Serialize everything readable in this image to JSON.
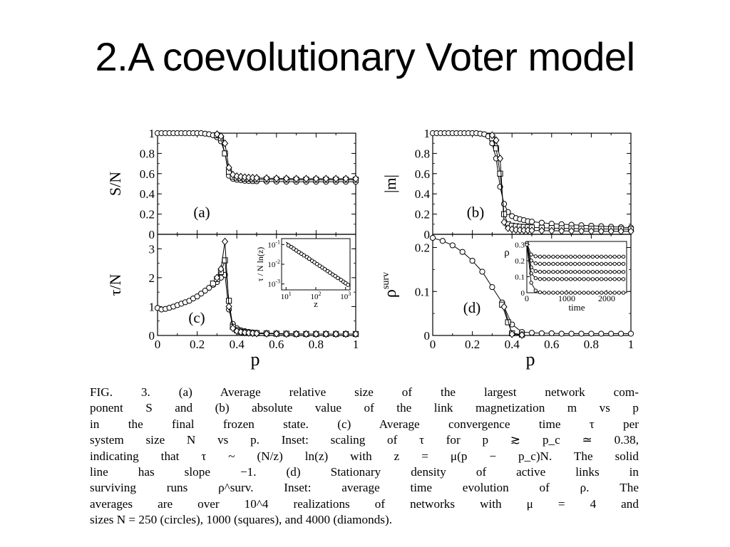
{
  "slide": {
    "title": "2.A coevolutionary Voter model"
  },
  "figure": {
    "caption_lines": [
      "FIG. 3.   (a) Average relative size of the largest network com-",
      "ponent S and (b) absolute value of the link magnetization m vs p",
      "in the final frozen state. (c) Average convergence time τ per",
      "system size N vs p. Inset: scaling of τ for p ≳ p_c ≃ 0.38,",
      "indicating that τ ~ (N/z) ln(z) with z = μ(p − p_c)N. The solid",
      "line has slope −1. (d) Stationary density of active links in",
      "surviving runs ρ^surv. Inset: average time evolution of ρ. The",
      "averages are over 10^4 realizations of networks with μ = 4 and",
      "sizes N = 250 (circles), 1000 (squares), and 4000 (diamonds)."
    ]
  },
  "chart_data": [
    {
      "panel": "(a)",
      "type": "line",
      "ylabel": "S/N",
      "ylim": [
        0,
        1
      ],
      "yticks": [
        "0",
        "0.2",
        "0.4",
        "0.6",
        "0.8",
        "1"
      ],
      "xlim": [
        0,
        1
      ],
      "series": [
        {
          "name": "N = 250 (circles)",
          "marker": "circle",
          "x": [
            0,
            0.02,
            0.04,
            0.06,
            0.08,
            0.1,
            0.12,
            0.14,
            0.16,
            0.18,
            0.2,
            0.22,
            0.24,
            0.26,
            0.28,
            0.3,
            0.32,
            0.34,
            0.36,
            0.38,
            0.4,
            0.42,
            0.44,
            0.46,
            0.48,
            0.5,
            0.55,
            0.6,
            0.65,
            0.7,
            0.75,
            0.8,
            0.85,
            0.9,
            0.95,
            1.0
          ],
          "y": [
            1,
            1,
            1,
            1,
            1,
            1,
            1,
            1,
            1,
            1,
            1,
            1,
            0.995,
            0.99,
            0.98,
            0.96,
            0.92,
            0.8,
            0.58,
            0.55,
            0.54,
            0.535,
            0.53,
            0.528,
            0.526,
            0.525,
            0.523,
            0.522,
            0.521,
            0.52,
            0.52,
            0.52,
            0.52,
            0.52,
            0.52,
            0.52
          ]
        },
        {
          "name": "N = 1000 (squares)",
          "marker": "square",
          "x": [
            0.3,
            0.32,
            0.34,
            0.36,
            0.38,
            0.4,
            0.42,
            0.44,
            0.46,
            0.48,
            0.5,
            0.55,
            0.6,
            0.65,
            0.7,
            0.75,
            0.8,
            0.85,
            0.9,
            0.95,
            1.0
          ],
          "y": [
            0.98,
            0.95,
            0.8,
            0.62,
            0.57,
            0.56,
            0.555,
            0.55,
            0.548,
            0.546,
            0.545,
            0.543,
            0.542,
            0.541,
            0.54,
            0.54,
            0.54,
            0.54,
            0.54,
            0.54,
            0.54
          ]
        },
        {
          "name": "N = 4000 (diamonds)",
          "marker": "diamond",
          "x": [
            0.3,
            0.32,
            0.34,
            0.36,
            0.38,
            0.4,
            0.42,
            0.44,
            0.46,
            0.48,
            0.5,
            0.55,
            0.6,
            0.65,
            0.7,
            0.75,
            0.8,
            0.85,
            0.9,
            0.95,
            1.0
          ],
          "y": [
            0.99,
            0.97,
            0.9,
            0.66,
            0.59,
            0.575,
            0.57,
            0.565,
            0.562,
            0.56,
            0.558,
            0.555,
            0.553,
            0.552,
            0.55,
            0.55,
            0.55,
            0.55,
            0.55,
            0.55,
            0.55
          ]
        }
      ]
    },
    {
      "panel": "(b)",
      "type": "line",
      "ylabel": "|m|",
      "ylim": [
        0,
        1
      ],
      "yticks": [
        "0",
        "0.2",
        "0.4",
        "0.6",
        "0.8",
        "1"
      ],
      "xlim": [
        0,
        1
      ],
      "series": [
        {
          "name": "N = 250 (circles)",
          "marker": "circle",
          "x": [
            0,
            0.02,
            0.04,
            0.06,
            0.08,
            0.1,
            0.12,
            0.14,
            0.16,
            0.18,
            0.2,
            0.22,
            0.24,
            0.26,
            0.28,
            0.3,
            0.32,
            0.34,
            0.36,
            0.38,
            0.4,
            0.42,
            0.44,
            0.46,
            0.48,
            0.5,
            0.55,
            0.6,
            0.65,
            0.7,
            0.75,
            0.8,
            0.85,
            0.9,
            0.95,
            1.0
          ],
          "y": [
            1,
            1,
            1,
            1,
            1,
            1,
            1,
            1,
            1,
            1,
            1,
            1,
            0.995,
            0.99,
            0.97,
            0.9,
            0.75,
            0.47,
            0.3,
            0.22,
            0.18,
            0.16,
            0.15,
            0.14,
            0.13,
            0.125,
            0.115,
            0.105,
            0.1,
            0.095,
            0.09,
            0.085,
            0.08,
            0.075,
            0.07,
            0.065
          ]
        },
        {
          "name": "N = 1000 (squares)",
          "marker": "square",
          "x": [
            0.3,
            0.32,
            0.34,
            0.36,
            0.38,
            0.4,
            0.42,
            0.44,
            0.46,
            0.48,
            0.5,
            0.55,
            0.6,
            0.65,
            0.7,
            0.75,
            0.8,
            0.85,
            0.9,
            0.95,
            1.0
          ],
          "y": [
            0.95,
            0.85,
            0.6,
            0.2,
            0.1,
            0.085,
            0.08,
            0.075,
            0.072,
            0.07,
            0.068,
            0.065,
            0.062,
            0.06,
            0.058,
            0.056,
            0.055,
            0.054,
            0.053,
            0.052,
            0.05
          ]
        },
        {
          "name": "N = 4000 (diamonds)",
          "marker": "diamond",
          "x": [
            0.3,
            0.32,
            0.34,
            0.36,
            0.38,
            0.4,
            0.42,
            0.44,
            0.46,
            0.48,
            0.5,
            0.55,
            0.6,
            0.65,
            0.7,
            0.75,
            0.8,
            0.85,
            0.9,
            0.95,
            1.0
          ],
          "y": [
            0.98,
            0.93,
            0.75,
            0.12,
            0.06,
            0.05,
            0.045,
            0.042,
            0.04,
            0.04,
            0.038,
            0.036,
            0.035,
            0.034,
            0.033,
            0.032,
            0.031,
            0.03,
            0.03,
            0.03,
            0.03
          ]
        }
      ]
    },
    {
      "panel": "(c)",
      "type": "line",
      "ylabel": "τ/N",
      "xlabel": "p",
      "ylim": [
        0,
        3.5
      ],
      "yticks": [
        "0",
        "1",
        "2",
        "3"
      ],
      "xlim": [
        0,
        1
      ],
      "xticks": [
        "0",
        "0.2",
        "0.4",
        "0.6",
        "0.8",
        "1"
      ],
      "series": [
        {
          "name": "N = 250 (circles)",
          "marker": "circle",
          "x": [
            0,
            0.02,
            0.04,
            0.06,
            0.08,
            0.1,
            0.12,
            0.14,
            0.16,
            0.18,
            0.2,
            0.22,
            0.24,
            0.26,
            0.28,
            0.3,
            0.32,
            0.34,
            0.36,
            0.38,
            0.4,
            0.42,
            0.44,
            0.46,
            0.48,
            0.5,
            0.55,
            0.6,
            0.65,
            0.7,
            0.75,
            0.8,
            0.85,
            0.9,
            0.95,
            1.0
          ],
          "y": [
            0.95,
            0.9,
            0.92,
            0.96,
            1.0,
            1.05,
            1.1,
            1.15,
            1.2,
            1.28,
            1.35,
            1.45,
            1.55,
            1.65,
            1.75,
            1.85,
            2.0,
            2.1,
            0.9,
            0.4,
            0.25,
            0.18,
            0.15,
            0.12,
            0.1,
            0.09,
            0.08,
            0.07,
            0.06,
            0.06,
            0.05,
            0.05,
            0.05,
            0.05,
            0.05,
            0.05
          ]
        },
        {
          "name": "N = 1000 (squares)",
          "marker": "square",
          "x": [
            0.28,
            0.3,
            0.32,
            0.34,
            0.36,
            0.38,
            0.4,
            0.42,
            0.44,
            0.46,
            0.48,
            0.5,
            0.55,
            0.6,
            0.65,
            0.7,
            0.75,
            0.8,
            0.85,
            0.9,
            0.95,
            1.0
          ],
          "y": [
            1.8,
            1.95,
            2.2,
            2.6,
            1.2,
            0.3,
            0.18,
            0.13,
            0.11,
            0.1,
            0.09,
            0.08,
            0.07,
            0.06,
            0.06,
            0.05,
            0.05,
            0.05,
            0.05,
            0.05,
            0.05,
            0.05
          ]
        },
        {
          "name": "N = 4000 (diamonds)",
          "marker": "diamond",
          "x": [
            0.3,
            0.32,
            0.34,
            0.36,
            0.38,
            0.4,
            0.42,
            0.44,
            0.46,
            0.48,
            0.5,
            0.55,
            0.6,
            0.65,
            0.7,
            0.75,
            0.8,
            0.85,
            0.9,
            0.95,
            1.0
          ],
          "y": [
            2.0,
            2.3,
            3.25,
            1.0,
            0.25,
            0.15,
            0.12,
            0.1,
            0.09,
            0.08,
            0.07,
            0.06,
            0.06,
            0.05,
            0.05,
            0.05,
            0.05,
            0.05,
            0.05,
            0.05,
            0.05
          ]
        }
      ],
      "inset": {
        "type": "scatter",
        "scale": "log-log",
        "ylabel": "τ / N ln(z)",
        "xlabel": "z",
        "xticks": [
          "10^1",
          "10^2",
          "10^3"
        ],
        "yticks": [
          "10^-1",
          "10^-2",
          "10^-3"
        ],
        "x": [
          12,
          15,
          18,
          22,
          27,
          33,
          40,
          50,
          60,
          75,
          90,
          110,
          135,
          165,
          200,
          250,
          300,
          370,
          450,
          550,
          700,
          850,
          1000,
          1200
        ],
        "y": [
          0.09,
          0.075,
          0.062,
          0.05,
          0.041,
          0.034,
          0.028,
          0.023,
          0.019,
          0.015,
          0.0125,
          0.0102,
          0.0083,
          0.0068,
          0.0056,
          0.0045,
          0.0037,
          0.003,
          0.0025,
          0.002,
          0.0016,
          0.0013,
          0.0011,
          0.0009
        ],
        "solid_line_slope": -1
      }
    },
    {
      "panel": "(d)",
      "type": "line",
      "ylabel": "ρ^surv",
      "xlabel": "p",
      "ylim": [
        0,
        0.23
      ],
      "yticks": [
        "0",
        "0.1",
        "0.2"
      ],
      "xlim": [
        0,
        1
      ],
      "xticks": [
        "0",
        "0.2",
        "0.4",
        "0.6",
        "0.8",
        "1"
      ],
      "series": [
        {
          "name": "N = 250 (circles)",
          "marker": "circle",
          "x": [
            0,
            0.05,
            0.1,
            0.15,
            0.2,
            0.25,
            0.3,
            0.35,
            0.4,
            0.45,
            0.5,
            0.55,
            0.6,
            0.65,
            0.7,
            0.75,
            0.8,
            0.85,
            0.9,
            0.95,
            1.0
          ],
          "y": [
            0.222,
            0.215,
            0.205,
            0.19,
            0.17,
            0.145,
            0.11,
            0.075,
            0.025,
            0.008,
            0.006,
            0.005,
            0.005,
            0.004,
            0.004,
            0.004,
            0.004,
            0.004,
            0.004,
            0.004,
            0.004
          ]
        },
        {
          "name": "N = 1000 (squares)",
          "marker": "square",
          "x": [
            0.35,
            0.38,
            0.4,
            0.45
          ],
          "y": [
            0.07,
            0.03,
            0.005,
            0.002
          ]
        },
        {
          "name": "N = 4000 (diamonds)",
          "marker": "diamond",
          "x": [
            0.36,
            0.4,
            0.45
          ],
          "y": [
            0.065,
            0.003,
            0.001
          ]
        }
      ],
      "inset": {
        "type": "line",
        "ylabel": "ρ",
        "xlabel": "time",
        "xticks": [
          "0",
          "1000",
          "2000"
        ],
        "yticks": [
          "0",
          "0.1",
          "0.2",
          "0.3"
        ],
        "xlim": [
          0,
          2500
        ],
        "ylim": [
          0,
          0.32
        ],
        "levels": [
          0.225,
          0.18,
          0.13,
          0.085,
          0.0
        ]
      }
    }
  ]
}
